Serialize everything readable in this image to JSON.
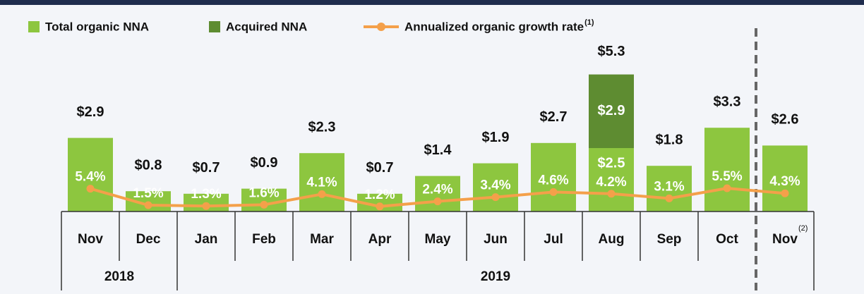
{
  "chart_data": {
    "type": "bar",
    "categories": [
      "Nov",
      "Dec",
      "Jan",
      "Feb",
      "Mar",
      "Apr",
      "May",
      "Jun",
      "Jul",
      "Aug",
      "Sep",
      "Oct",
      "Nov"
    ],
    "category_notes": [
      null,
      null,
      null,
      null,
      null,
      null,
      null,
      null,
      null,
      null,
      null,
      null,
      "(2)"
    ],
    "year_groups": [
      {
        "label": "2018",
        "count": 2
      },
      {
        "label": "2019",
        "count": 11
      }
    ],
    "series": [
      {
        "name": "Total organic NNA",
        "color": "#8dc63f",
        "values": [
          2.9,
          0.8,
          0.7,
          0.9,
          2.3,
          0.7,
          1.4,
          1.9,
          2.7,
          2.5,
          1.8,
          3.3,
          2.6
        ],
        "value_labels": [
          "$2.9",
          "$0.8",
          "$0.7",
          "$0.9",
          "$2.3",
          "$0.7",
          "$1.4",
          "$1.9",
          "$2.7",
          "$2.5",
          "$1.8",
          "$3.3",
          "$2.6"
        ]
      },
      {
        "name": "Acquired NNA",
        "color": "#5e8c31",
        "values": [
          null,
          null,
          null,
          null,
          null,
          null,
          null,
          null,
          null,
          2.9,
          null,
          null,
          null
        ],
        "value_labels": [
          null,
          null,
          null,
          null,
          null,
          null,
          null,
          null,
          null,
          "$2.9",
          null,
          null,
          null
        ]
      },
      {
        "name": "Annualized organic growth rate",
        "name_note": "(1)",
        "type": "line",
        "axis": "y2",
        "color": "#f4a04a",
        "values": [
          5.4,
          1.5,
          1.3,
          1.6,
          4.1,
          1.2,
          2.4,
          3.4,
          4.6,
          4.2,
          3.1,
          5.5,
          4.3
        ],
        "value_labels": [
          "5.4%",
          "1.5%",
          "1.3%",
          "1.6%",
          "4.1%",
          "1.2%",
          "2.4%",
          "3.4%",
          "4.6%",
          "4.2%",
          "3.1%",
          "5.5%",
          "4.3%"
        ]
      }
    ],
    "annotations": [
      {
        "category": 9,
        "text": "$5.3"
      }
    ],
    "ylim": [
      0,
      6
    ],
    "y2lim": [
      0,
      36
    ]
  }
}
